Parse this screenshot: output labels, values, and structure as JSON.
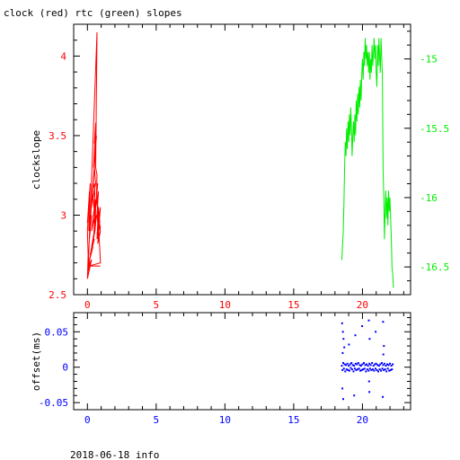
{
  "title": "clock (red) rtc (green) slopes",
  "footer": "2018-06-18 info",
  "colors": {
    "clock": "#ff0000",
    "rtc": "#00ee00",
    "offset": "#0000ff",
    "axis": "#000000"
  },
  "chart_data": [
    {
      "type": "line",
      "title": "clock (red) rtc (green) slopes",
      "xlabel": "",
      "ylabel": "clockslope",
      "xlim": [
        -1,
        23.5
      ],
      "ylim": [
        2.5,
        4.2
      ],
      "xticks": [
        0,
        5,
        10,
        15,
        20
      ],
      "x_tick_labels": [
        "0",
        "5",
        "10",
        "15",
        "20"
      ],
      "yticks": [
        2.5,
        3,
        3.5,
        4
      ],
      "y_tick_labels": [
        "2.5",
        "3",
        "3.5",
        "4"
      ],
      "y2lim": [
        -16.7,
        -14.75
      ],
      "y2ticks": [
        -16.5,
        -16,
        -15.5,
        -15
      ],
      "y2_tick_labels": [
        "-16.5",
        "-16",
        "-15.5",
        "-15"
      ],
      "grid": false,
      "series": [
        {
          "name": "clock",
          "axis": "left",
          "x": [
            0.0,
            0.05,
            0.0,
            0.1,
            0.0,
            0.15,
            0.05,
            0.2,
            0.1,
            0.3,
            0.15,
            0.3,
            0.2,
            0.4,
            0.3,
            0.45,
            0.35,
            0.5,
            0.4,
            0.55,
            0.45,
            0.6,
            0.5,
            0.6,
            0.55,
            0.65,
            0.5,
            0.6,
            0.4,
            0.55,
            0.3,
            0.5,
            0.35,
            0.55,
            0.5,
            0.6,
            0.5,
            0.65,
            0.55,
            0.6,
            0.5,
            0.6,
            0.45,
            0.6,
            0.3,
            0.55,
            0.2,
            0.5,
            0.1,
            0.4,
            0.05,
            0.3,
            0.0,
            0.2,
            0.05,
            0.7,
            0.6,
            0.7,
            0.65,
            0.75,
            0.6,
            0.8,
            0.7,
            0.75,
            0.9,
            0.8,
            0.7,
            0.8,
            0.9,
            0.7,
            0.8,
            0.95,
            0.7,
            0.85,
            0.95,
            0.7,
            0.9,
            0.75,
            0.95,
            0.8,
            0.95,
            0.1,
            0.95
          ],
          "y": [
            2.6,
            2.75,
            2.9,
            3.05,
            2.95,
            3.15,
            3.0,
            3.2,
            2.9,
            3.1,
            2.85,
            3.0,
            2.95,
            3.2,
            3.05,
            3.25,
            3.1,
            3.3,
            3.15,
            3.4,
            3.3,
            3.55,
            3.45,
            3.58,
            3.4,
            3.5,
            3.3,
            3.2,
            3.1,
            3.0,
            2.9,
            3.05,
            3.15,
            3.2,
            2.95,
            3.1,
            2.88,
            3.0,
            2.9,
            3.05,
            2.95,
            3.1,
            2.85,
            2.95,
            2.8,
            2.9,
            2.75,
            2.85,
            2.7,
            2.8,
            2.68,
            2.72,
            2.6,
            2.7,
            2.65,
            4.15,
            3.3,
            3.25,
            3.1,
            3.2,
            3.05,
            3.15,
            3.0,
            2.95,
            3.0,
            2.9,
            2.85,
            3.05,
            2.95,
            3.1,
            2.9,
            2.92,
            3.02,
            2.95,
            3.05,
            2.88,
            3.0,
            2.82,
            2.9,
            2.95,
            2.7,
            2.68,
            2.68
          ]
        },
        {
          "name": "rtc",
          "axis": "right",
          "x": [
            18.5,
            18.55,
            18.6,
            18.65,
            18.7,
            18.75,
            18.8,
            18.85,
            18.9,
            18.95,
            19.0,
            19.05,
            19.1,
            19.15,
            19.2,
            19.25,
            19.3,
            19.35,
            19.4,
            19.45,
            19.5,
            19.55,
            19.6,
            19.65,
            19.7,
            19.75,
            19.8,
            19.85,
            19.9,
            19.95,
            20.0,
            20.05,
            20.1,
            20.15,
            20.2,
            20.25,
            20.3,
            20.35,
            20.4,
            20.45,
            20.5,
            20.55,
            20.6,
            20.65,
            20.7,
            20.75,
            20.8,
            20.85,
            20.9,
            20.95,
            21.0,
            21.05,
            21.1,
            21.15,
            21.2,
            21.25,
            21.3,
            21.35,
            21.4,
            21.45,
            21.5,
            21.55,
            21.6,
            21.65,
            21.7,
            21.75,
            21.8,
            21.85,
            21.9,
            21.95,
            22.0,
            22.05,
            22.1,
            22.15,
            22.2,
            22.25
          ],
          "y": [
            -16.45,
            -16.35,
            -16.25,
            -16.05,
            -15.8,
            -15.6,
            -15.7,
            -15.5,
            -15.65,
            -15.45,
            -15.6,
            -15.4,
            -15.55,
            -15.35,
            -15.5,
            -15.7,
            -15.55,
            -15.45,
            -15.6,
            -15.4,
            -15.55,
            -15.3,
            -15.45,
            -15.25,
            -15.4,
            -15.2,
            -15.35,
            -15.15,
            -15.3,
            -15.1,
            -15.0,
            -15.15,
            -14.95,
            -15.05,
            -14.85,
            -15.0,
            -14.9,
            -15.05,
            -14.95,
            -15.1,
            -14.95,
            -15.15,
            -15.0,
            -15.1,
            -14.9,
            -15.05,
            -14.95,
            -14.85,
            -15.0,
            -14.9,
            -15.1,
            -15.2,
            -14.9,
            -15.05,
            -14.85,
            -15.0,
            -15.1,
            -14.85,
            -15.0,
            -15.1,
            -15.8,
            -16.0,
            -16.3,
            -16.1,
            -15.95,
            -16.15,
            -16.0,
            -16.2,
            -15.95,
            -16.1,
            -16.0,
            -16.15,
            -16.3,
            -16.5,
            -16.55,
            -16.65
          ]
        }
      ]
    },
    {
      "type": "scatter",
      "title": "",
      "xlabel": "",
      "ylabel": "offset(ms)",
      "xlim": [
        -1,
        23.5
      ],
      "ylim": [
        -0.06,
        0.077
      ],
      "xticks": [
        0,
        5,
        10,
        15,
        20
      ],
      "x_tick_labels": [
        "0",
        "5",
        "10",
        "15",
        "20"
      ],
      "yticks": [
        -0.05,
        0,
        0.05
      ],
      "y_tick_labels": [
        "-0.05",
        "0",
        "0.05"
      ],
      "grid": false,
      "series": [
        {
          "name": "offset",
          "x": [
            18.5,
            18.55,
            18.6,
            18.65,
            18.7,
            18.75,
            18.8,
            18.85,
            18.9,
            18.95,
            19.0,
            19.05,
            19.1,
            19.15,
            19.2,
            19.25,
            19.3,
            19.35,
            19.4,
            19.45,
            19.5,
            19.55,
            19.6,
            19.65,
            19.7,
            19.75,
            19.8,
            19.85,
            19.9,
            19.95,
            20.0,
            20.05,
            20.1,
            20.15,
            20.2,
            20.25,
            20.3,
            20.35,
            20.4,
            20.45,
            20.5,
            20.55,
            20.6,
            20.65,
            20.7,
            20.75,
            20.8,
            20.85,
            20.9,
            20.95,
            21.0,
            21.05,
            21.1,
            21.15,
            21.2,
            21.25,
            21.3,
            21.35,
            21.4,
            21.45,
            21.5,
            21.55,
            21.6,
            21.65,
            21.7,
            21.75,
            21.8,
            21.85,
            21.9,
            21.95,
            22.0,
            22.05,
            22.1,
            22.15,
            22.2,
            18.52,
            18.58,
            18.62,
            18.68,
            19.02,
            19.48,
            19.98,
            20.46,
            20.52,
            20.96,
            21.5,
            21.56,
            18.54,
            18.6,
            19.4,
            20.5,
            21.48,
            18.56,
            20.48,
            21.52
          ],
          "y": [
            0.002,
            -0.004,
            0.006,
            -0.002,
            0.004,
            -0.006,
            0.003,
            -0.003,
            0.005,
            -0.004,
            0.002,
            -0.005,
            0.004,
            -0.001,
            0.006,
            -0.003,
            0.003,
            -0.006,
            0.002,
            -0.002,
            0.005,
            -0.004,
            0.004,
            -0.003,
            0.006,
            -0.002,
            0.003,
            -0.005,
            0.002,
            -0.004,
            0.004,
            -0.003,
            0.006,
            -0.002,
            0.003,
            -0.006,
            0.004,
            -0.003,
            0.002,
            -0.005,
            0.005,
            -0.002,
            0.003,
            -0.004,
            0.006,
            -0.003,
            0.002,
            -0.005,
            0.004,
            -0.002,
            0.005,
            -0.004,
            0.003,
            -0.006,
            0.002,
            -0.003,
            0.004,
            -0.005,
            0.006,
            -0.002,
            0.003,
            -0.004,
            0.005,
            -0.003,
            0.002,
            -0.006,
            0.004,
            -0.002,
            0.003,
            -0.005,
            0.005,
            -0.004,
            0.002,
            -0.003,
            0.004,
            0.062,
            0.05,
            0.04,
            0.028,
            0.032,
            0.045,
            0.058,
            0.066,
            0.04,
            0.05,
            0.064,
            0.03,
            -0.03,
            -0.045,
            -0.04,
            -0.035,
            -0.042,
            0.02,
            -0.02,
            0.018
          ]
        }
      ]
    }
  ]
}
